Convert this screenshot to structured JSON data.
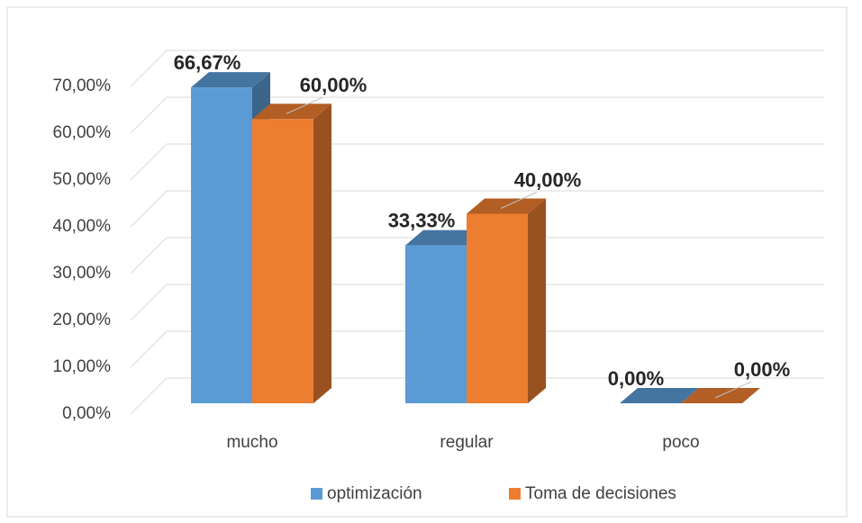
{
  "chart_data": {
    "type": "bar3d",
    "categories": [
      "mucho",
      "regular",
      "poco"
    ],
    "series": [
      {
        "name": "optimización",
        "color": "#5b9bd5",
        "values": [
          66.67,
          33.33,
          0
        ],
        "value_labels": [
          "66,67%",
          "33,33%",
          "0,00%"
        ]
      },
      {
        "name": "Toma de decisiones",
        "color": "#ed7d31",
        "values": [
          60,
          40,
          0
        ],
        "value_labels": [
          "60,00%",
          "40,00%",
          "0,00%"
        ]
      }
    ],
    "ylim": [
      0,
      70
    ],
    "yticks": [
      {
        "value": 0,
        "label": "0,00%"
      },
      {
        "value": 10,
        "label": "10,00%"
      },
      {
        "value": 20,
        "label": "20,00%"
      },
      {
        "value": 30,
        "label": "30,00%"
      },
      {
        "value": 40,
        "label": "40,00%"
      },
      {
        "value": 50,
        "label": "50,00%"
      },
      {
        "value": 60,
        "label": "60,00%"
      },
      {
        "value": 70,
        "label": "70,00%"
      }
    ],
    "grid": true,
    "legend": "bottom"
  }
}
